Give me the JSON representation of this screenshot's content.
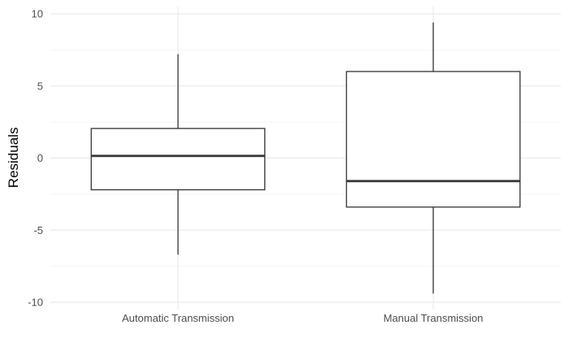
{
  "chart_data": {
    "type": "boxplot",
    "title": "",
    "xlabel": "",
    "ylabel": "Residuals",
    "ylim": [
      -10.5,
      10.5
    ],
    "y_ticks": [
      10,
      5,
      0,
      -5,
      -10
    ],
    "y_tick_labels": [
      "10",
      "5",
      "0",
      "-5",
      "-10"
    ],
    "grid": true,
    "categories": [
      "Automatic Transmission",
      "Manual Transmission"
    ],
    "boxes": [
      {
        "category": "Automatic Transmission",
        "whisker_low": -6.7,
        "q1": -2.2,
        "median": 0.15,
        "q3": 2.05,
        "whisker_high": 7.2
      },
      {
        "category": "Manual Transmission",
        "whisker_low": -9.4,
        "q1": -3.4,
        "median": -1.6,
        "q3": 6.0,
        "whisker_high": 9.4
      }
    ],
    "colors": {
      "box_stroke": "#333333",
      "box_fill": "#ffffff",
      "grid_major": "#ebebeb",
      "grid_minor": "#f2f2f2",
      "tick_text": "#4d4d4d",
      "axis_title": "#000000"
    }
  }
}
